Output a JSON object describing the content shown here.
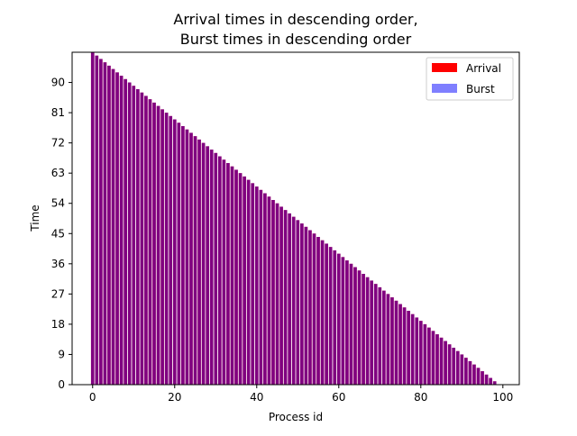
{
  "chart_data": {
    "type": "bar",
    "title_lines": [
      "Arrival times in descending order,",
      "Burst times in descending order"
    ],
    "xlabel": "Process id",
    "ylabel": "Time",
    "x": {
      "start": 0,
      "end": 99,
      "ticks": [
        0,
        20,
        40,
        60,
        80,
        100
      ],
      "lim": [
        -5,
        104
      ]
    },
    "y": {
      "ticks": [
        0,
        9,
        18,
        27,
        36,
        45,
        54,
        63,
        72,
        81,
        90
      ],
      "lim": [
        0,
        99
      ]
    },
    "values_rule": "value(i) = 99 - i for process id i = 0..99 (both series identical)",
    "series": [
      {
        "name": "Arrival",
        "color": "#ff0000",
        "alpha": 1.0
      },
      {
        "name": "Burst",
        "color": "#0000ff",
        "alpha": 0.5
      }
    ],
    "legend_position": "top-right",
    "grid": false
  }
}
